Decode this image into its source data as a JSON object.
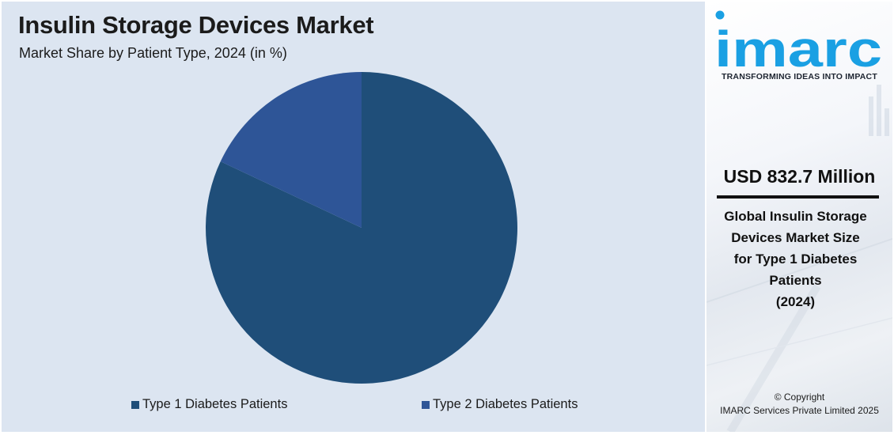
{
  "chart_data": {
    "type": "pie",
    "title": "Insulin Storage Devices Market",
    "subtitle": "Market Share by Patient Type, 2024 (in %)",
    "categories": [
      "Type 1 Diabetes Patients",
      "Type 2 Diabetes Patients"
    ],
    "values": [
      82,
      18
    ],
    "colors": [
      "#1f4e79",
      "#2e5597"
    ],
    "legend": "bottom"
  },
  "sidebar": {
    "logo_text": "imarc",
    "tagline": "TRANSFORMING IDEAS INTO IMPACT",
    "market_value": "USD 832.7 Million",
    "caption_lines": [
      "Global Insulin Storage",
      "Devices Market Size",
      "for Type 1 Diabetes",
      "Patients",
      "(2024)"
    ],
    "copyright_line1": "© Copyright",
    "copyright_line2": "IMARC Services Private Limited 2025"
  },
  "colors": {
    "panel_background": "#dce5f1",
    "logo_blue": "#1aa0e3",
    "text_dark": "#1b1b1b"
  }
}
